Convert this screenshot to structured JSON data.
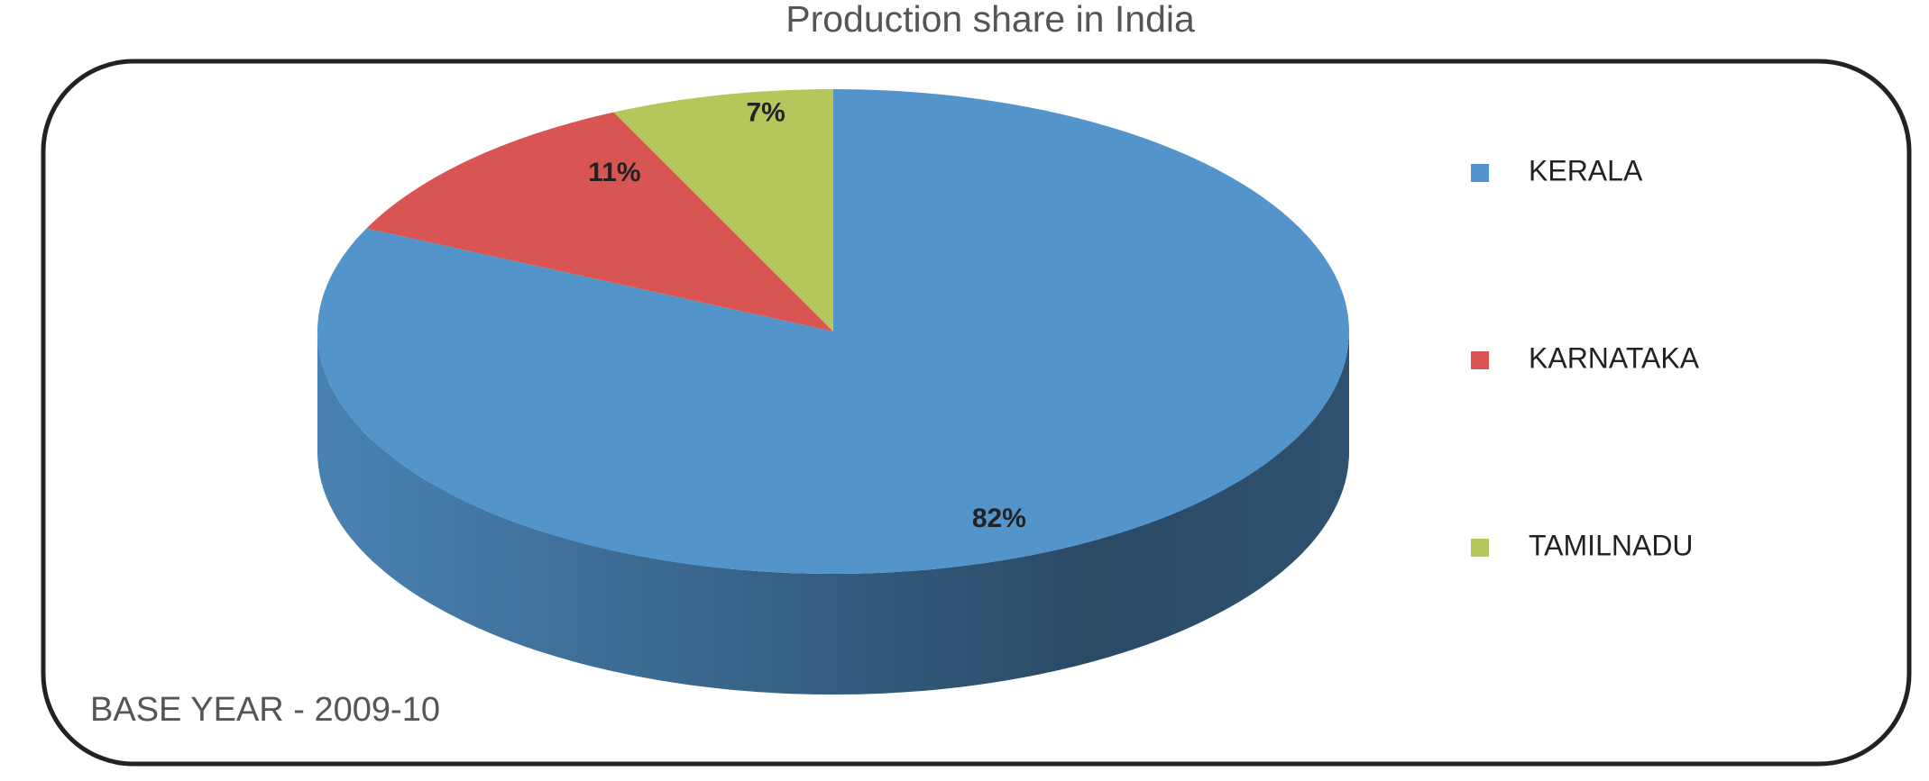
{
  "chart_data": {
    "type": "pie",
    "title": "Production share in India",
    "categories": [
      "KERALA",
      "KARNATAKA",
      "TAMILNADU"
    ],
    "values": [
      82,
      11,
      7
    ],
    "value_labels": [
      "82%",
      "11%",
      "7%"
    ],
    "colors": [
      "#5394cb",
      "#d95553",
      "#b5c65a"
    ],
    "legend": "right",
    "annotation": "BASE YEAR - 2009-10"
  }
}
